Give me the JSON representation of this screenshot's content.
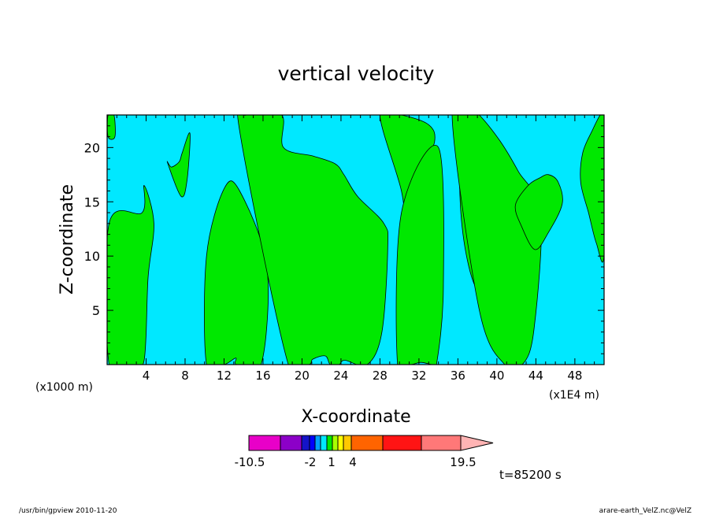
{
  "chart_data": {
    "type": "heatmap",
    "title": "vertical velocity",
    "xlabel": "X-coordinate",
    "ylabel": "Z-coordinate",
    "x_unit_left": "(x1000 m)",
    "x_unit_right": "(x1E4 m)",
    "xlim": [
      0,
      51
    ],
    "ylim": [
      0,
      23
    ],
    "x_ticks": [
      4,
      8,
      12,
      16,
      20,
      24,
      28,
      32,
      36,
      40,
      44,
      48
    ],
    "y_ticks": [
      5,
      10,
      15,
      20
    ],
    "regions": [
      {
        "color": "#00e8ff",
        "x": [
          0,
          51,
          51,
          0
        ],
        "y": [
          0,
          0,
          23,
          23
        ]
      },
      {
        "color": "#00e800",
        "x": [
          0.2,
          2.5,
          3.8,
          4.2,
          4.8,
          3.8,
          3.6,
          0.2
        ],
        "y": [
          0,
          0,
          0.4,
          8,
          13,
          16.5,
          14,
          13
        ]
      },
      {
        "color": "#00e800",
        "x": [
          0.1,
          0.8,
          0.7,
          0.1
        ],
        "y": [
          21,
          21,
          23,
          23
        ]
      },
      {
        "color": "#00e800",
        "x": [
          10.2,
          12,
          13.2,
          13.3,
          15.8,
          16.4,
          13.6,
          12,
          10.2
        ],
        "y": [
          0,
          0,
          0.6,
          0,
          0,
          9,
          16,
          16.2,
          10
        ]
      },
      {
        "color": "#00e800",
        "x": [
          7.6,
          8.2,
          8.5,
          7.7,
          7.4,
          6.6,
          6.2
        ],
        "y": [
          15.5,
          17,
          21.3,
          19.5,
          18.7,
          18.2,
          18.6
        ]
      },
      {
        "color": "#00e800",
        "x": [
          18.6,
          20.7,
          21.1,
          22.4,
          22.9,
          23.8,
          24.4,
          26.7,
          28.2,
          28.8,
          28.4,
          25.7,
          24.3,
          23.4,
          21.2,
          18.1,
          17.9,
          14.3,
          13.7
        ],
        "y": [
          0,
          0,
          0.5,
          0.8,
          0,
          0,
          0.4,
          0,
          3,
          10.8,
          13,
          15.5,
          17.5,
          18.5,
          19.2,
          20,
          23,
          23,
          21
        ]
      },
      {
        "color": "#00e800",
        "x": [
          28,
          30.2,
          33,
          33.6,
          32.2,
          33.4,
          31.3,
          30.7,
          30.2
        ],
        "y": [
          23,
          23,
          22.1,
          20.5,
          17.4,
          13.2,
          11.5,
          12.1,
          16
        ]
      },
      {
        "color": "#00e800",
        "x": [
          29.8,
          31.2,
          32.2,
          33.3,
          33.8,
          34.5,
          34,
          30.2
        ],
        "y": [
          0,
          0,
          0.2,
          0,
          0,
          7,
          20,
          14
        ]
      },
      {
        "color": "#00e800",
        "x": [
          36.2,
          37,
          38,
          36.8,
          38.8,
          39.1,
          38.2,
          37.1,
          36.3
        ],
        "y": [
          20.4,
          21.5,
          22.6,
          18.9,
          14,
          9.5,
          6.8,
          9.1,
          14
        ]
      },
      {
        "color": "#00e800",
        "x": [
          35.4,
          37.8,
          38.5,
          40.4,
          42.2,
          44.5,
          43.8,
          42.6,
          40.8,
          38.2
        ],
        "y": [
          23,
          23,
          22.7,
          20.5,
          17.8,
          13.8,
          3.2,
          0,
          0,
          5
        ]
      },
      {
        "color": "#00e800",
        "x": [
          41.9,
          43.2,
          44.4,
          45.3,
          46.3,
          46.7,
          45.3,
          43.9,
          42.5
        ],
        "y": [
          14.7,
          16.5,
          17.2,
          17.5,
          16.8,
          14.8,
          12.2,
          10.6,
          12.8
        ]
      },
      {
        "color": "#00e800",
        "x": [
          48.8,
          49.8,
          50.6,
          51,
          51,
          50.2,
          49.4,
          48.6
        ],
        "y": [
          19.5,
          21.6,
          23,
          23,
          10.2,
          11.2,
          14,
          16.8
        ]
      }
    ],
    "colorbar": {
      "bins": [
        {
          "color": "#e800c8"
        },
        {
          "color": "#8c00c8"
        },
        {
          "color": "#1414c8"
        },
        {
          "color": "#0000ff"
        },
        {
          "color": "#00a0ff"
        },
        {
          "color": "#00e8ff"
        },
        {
          "color": "#00e800"
        },
        {
          "color": "#a8ff00"
        },
        {
          "color": "#ffff00"
        },
        {
          "color": "#ffc800"
        },
        {
          "color": "#ff6400"
        },
        {
          "color": "#ff1414"
        },
        {
          "color": "#ff7878"
        }
      ],
      "overflow_color": "#ffb4b4",
      "labels": [
        "-10.5",
        "-2",
        "1",
        "4",
        "19.5"
      ]
    },
    "time_label": "t=85200 s"
  },
  "footer": {
    "left": "/usr/bin/gpview 2010-11-20",
    "right": "arare-earth_VelZ.nc@VelZ"
  }
}
